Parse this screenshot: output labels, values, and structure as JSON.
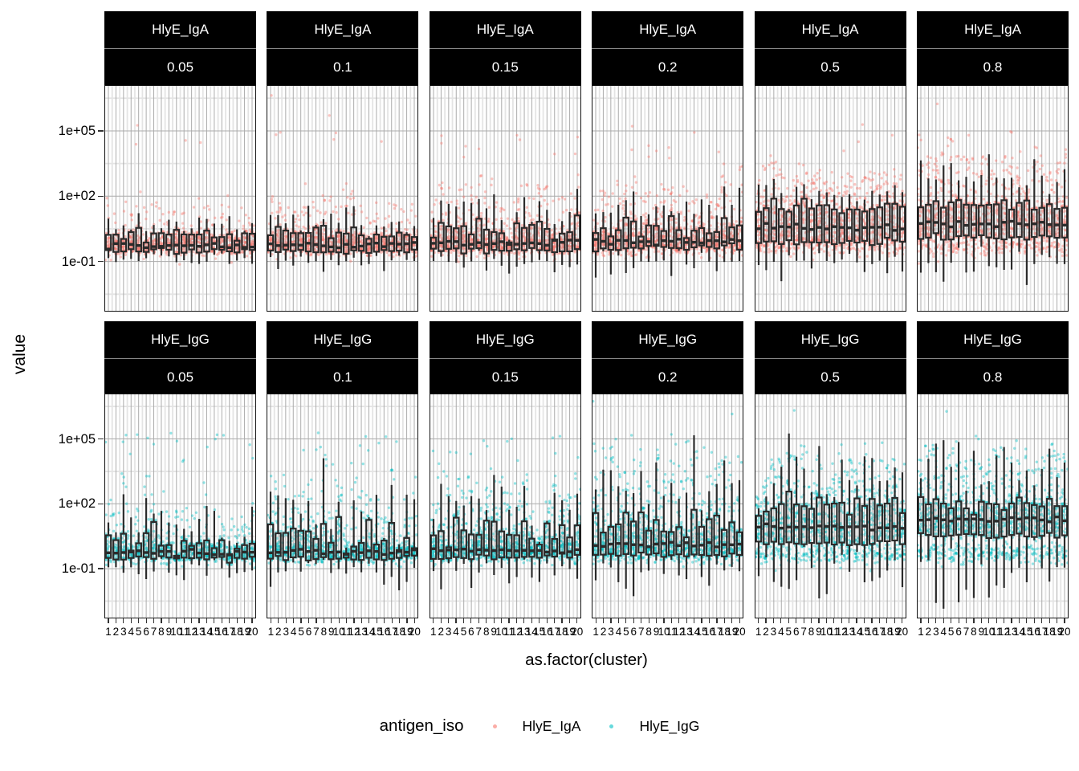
{
  "figure": {
    "ylabel": "value",
    "xlabel": "as.factor(cluster)",
    "legend": {
      "title": "antigen_iso",
      "items": [
        {
          "label": "HlyE_IgA",
          "color": "#F8766D"
        },
        {
          "label": "HlyE_IgG",
          "color": "#00BFC4"
        }
      ]
    }
  },
  "chart_data": {
    "type": "boxplot",
    "subtype": "faceted boxplots with jittered points, 2 facet rows x 6 facet columns",
    "facet_row_values": [
      "HlyE_IgA",
      "HlyE_IgG"
    ],
    "facet_col_values": [
      "0.05",
      "0.1",
      "0.15",
      "0.2",
      "0.5",
      "0.8"
    ],
    "x_categories": [
      "1",
      "2",
      "3",
      "4",
      "5",
      "6",
      "7",
      "8",
      "9",
      "10",
      "11",
      "12",
      "13",
      "14",
      "15",
      "16",
      "17",
      "18",
      "19",
      "20"
    ],
    "xlabel": "as.factor(cluster)",
    "ylabel": "value",
    "y_scale": "log10",
    "y_tick_labels": [
      "1e+05",
      "1e+02",
      "1e-01"
    ],
    "y_tick_log10": [
      5,
      2,
      -1
    ],
    "y_minor_log10": [
      6.5,
      3.5,
      0.5,
      -2.5
    ],
    "ylim_log10": [
      -3.3,
      7.1
    ],
    "grid": {
      "major": "#ababab",
      "minor": "#e4e4e4",
      "background": "#ffffff"
    },
    "strip": {
      "bg": "#000000",
      "fg": "#ffffff",
      "separator": "#8a8a8a"
    },
    "box_color": "#2b2b2b",
    "point_alpha": 0.42,
    "series_colors": {
      "HlyE_IgA": "#F8766D",
      "HlyE_IgG": "#00BFC4"
    },
    "legend_position": "bottom",
    "facets": [
      {
        "row": "HlyE_IgA",
        "col": "0.05",
        "q1": -0.52,
        "med": -0.25,
        "q3": 0.18,
        "q3sd": 0.14,
        "whi": 0.45,
        "whisd": 0.25,
        "wlo": 0.4,
        "wlosd": 0.15,
        "tail": 5,
        "extp": 0.3,
        "nfloor": 16,
        "nbox": 24
      },
      {
        "row": "HlyE_IgA",
        "col": "0.1",
        "q1": -0.5,
        "med": -0.23,
        "q3": 0.27,
        "q3sd": 0.2,
        "whi": 0.6,
        "whisd": 0.35,
        "wlo": 0.5,
        "wlosd": 0.22,
        "tail": 7,
        "extp": 0.3,
        "nfloor": 16,
        "nbox": 24
      },
      {
        "row": "HlyE_IgA",
        "col": "0.15",
        "q1": -0.48,
        "med": -0.15,
        "q3": 0.55,
        "q3sd": 0.3,
        "whi": 0.8,
        "whisd": 0.45,
        "wlo": 0.55,
        "wlosd": 0.25,
        "tail": 9,
        "extp": 0.35,
        "nfloor": 16,
        "nbox": 24
      },
      {
        "row": "HlyE_IgA",
        "col": "0.2",
        "q1": -0.35,
        "med": -0.08,
        "q3": 0.7,
        "q3sd": 0.3,
        "whi": 1.1,
        "whisd": 0.5,
        "wlo": 0.8,
        "wlosd": 0.35,
        "tail": 11,
        "extp": 0.35,
        "nfloor": 16,
        "nbox": 26
      },
      {
        "row": "HlyE_IgA",
        "col": "0.5",
        "q1": -0.1,
        "med": 0.55,
        "q3": 1.5,
        "q3sd": 0.2,
        "whi": 0.7,
        "whisd": 0.3,
        "wlo": 1.0,
        "wlosd": 0.35,
        "tail": 13,
        "extp": 0.3,
        "nfloor": 12,
        "nbox": 30
      },
      {
        "row": "HlyE_IgA",
        "col": "0.8",
        "q1": 0.12,
        "med": 0.75,
        "q3": 1.52,
        "q3sd": 0.18,
        "whi": 1.3,
        "whisd": 0.6,
        "wlo": 1.15,
        "wlosd": 0.4,
        "tail": 13,
        "extp": 0.3,
        "nfloor": 12,
        "nbox": 32
      },
      {
        "row": "HlyE_IgG",
        "col": "0.05",
        "q1": -0.52,
        "med": -0.26,
        "q3": 0.3,
        "q3sd": 0.4,
        "whi": 1.0,
        "whisd": 0.7,
        "wlo": 0.5,
        "wlosd": 0.3,
        "tail": 7,
        "extp": 0.5,
        "nfloor": 18,
        "nbox": 22
      },
      {
        "row": "HlyE_IgG",
        "col": "0.1",
        "q1": -0.5,
        "med": -0.22,
        "q3": 0.5,
        "q3sd": 0.4,
        "whi": 1.4,
        "whisd": 0.8,
        "wlo": 0.6,
        "wlosd": 0.35,
        "tail": 9,
        "extp": 0.5,
        "nfloor": 18,
        "nbox": 22
      },
      {
        "row": "HlyE_IgG",
        "col": "0.15",
        "q1": -0.45,
        "med": -0.15,
        "q3": 0.7,
        "q3sd": 0.4,
        "whi": 1.6,
        "whisd": 0.8,
        "wlo": 0.7,
        "wlosd": 0.4,
        "tail": 11,
        "extp": 0.5,
        "nfloor": 18,
        "nbox": 24
      },
      {
        "row": "HlyE_IgG",
        "col": "0.2",
        "q1": -0.35,
        "med": 0.1,
        "q3": 1.0,
        "q3sd": 0.45,
        "whi": 1.7,
        "whisd": 0.8,
        "wlo": 0.9,
        "wlosd": 0.5,
        "tail": 12,
        "extp": 0.5,
        "nfloor": 18,
        "nbox": 24
      },
      {
        "row": "HlyE_IgG",
        "col": "0.5",
        "q1": 0.2,
        "med": 0.9,
        "q3": 1.9,
        "q3sd": 0.25,
        "whi": 1.5,
        "whisd": 0.8,
        "wlo": 1.6,
        "wlosd": 0.6,
        "tail": 13,
        "extp": 0.45,
        "nfloor": 14,
        "nbox": 28
      },
      {
        "row": "HlyE_IgG",
        "col": "0.8",
        "q1": 0.5,
        "med": 1.3,
        "q3": 2.05,
        "q3sd": 0.18,
        "whi": 1.6,
        "whisd": 0.8,
        "wlo": 1.8,
        "wlosd": 0.7,
        "tail": 13,
        "extp": 0.45,
        "nfloor": 14,
        "nbox": 28
      }
    ]
  }
}
